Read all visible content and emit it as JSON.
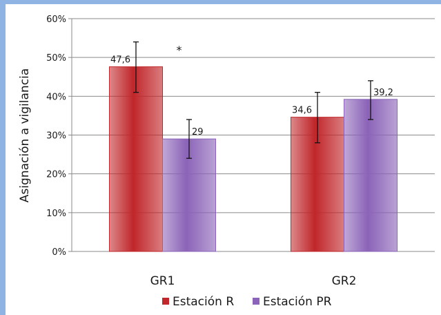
{
  "chart_data": {
    "type": "bar",
    "categories": [
      "GR1",
      "GR2"
    ],
    "series": [
      {
        "name": "Estación R",
        "values": [
          47.6,
          34.6
        ],
        "error_low": [
          41,
          28
        ],
        "error_high": [
          54,
          41
        ],
        "labels": [
          "47,6",
          "34,6"
        ],
        "color": "#c0262a"
      },
      {
        "name": "Estación PR",
        "values": [
          29,
          39.2
        ],
        "error_low": [
          24,
          34
        ],
        "error_high": [
          34,
          44
        ],
        "labels": [
          "29",
          "39,2"
        ],
        "color": "#8b63b8"
      }
    ],
    "ylabel": "Asignación a vigilancia",
    "ylim": [
      0,
      60
    ],
    "yticks": [
      0,
      10,
      20,
      30,
      40,
      50,
      60
    ],
    "ytick_labels": [
      "0%",
      "10%",
      "20%",
      "30%",
      "40%",
      "50%",
      "60%"
    ],
    "grid": true,
    "legend_position": "bottom",
    "annotations": [
      {
        "text": "*",
        "category": "GR1"
      }
    ]
  }
}
